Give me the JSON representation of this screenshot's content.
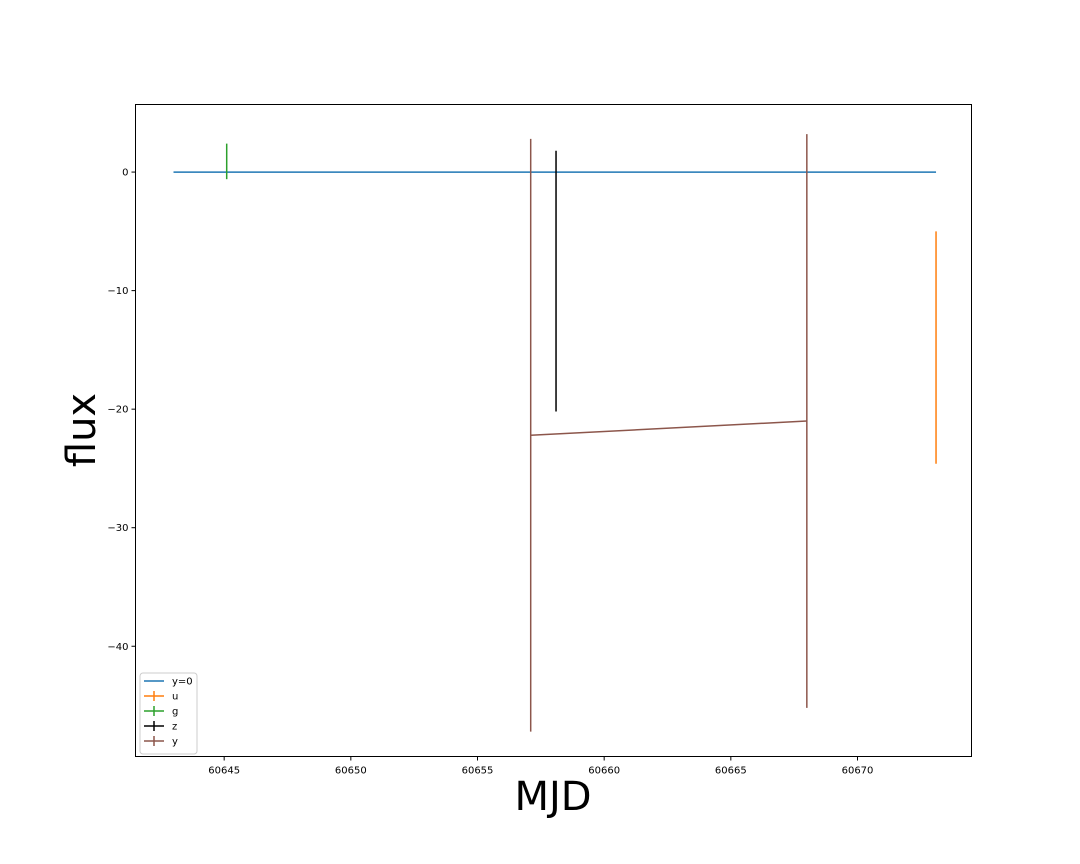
{
  "chart_data": {
    "type": "line",
    "title": "",
    "xlabel": "MJD",
    "ylabel": "flux",
    "xlim": [
      60641.5,
      60674.5
    ],
    "ylim": [
      -49.3,
      5.7
    ],
    "xticks": [
      60645,
      60650,
      60655,
      60660,
      60665,
      60670
    ],
    "yticks": [
      0,
      -10,
      -20,
      -30,
      -40
    ],
    "grid": false,
    "legend_placement": "lower-left",
    "series": [
      {
        "name": "y=0",
        "color": "#1f77b4",
        "kind": "line",
        "x": [
          60643.0,
          60673.1
        ],
        "y": [
          0,
          0
        ]
      },
      {
        "name": "u",
        "color": "#ff7f0e",
        "kind": "errorbar",
        "points": [
          {
            "x": 60673.1,
            "y": -14.8,
            "err": 9.8
          }
        ]
      },
      {
        "name": "g",
        "color": "#2ca02c",
        "kind": "errorbar",
        "points": [
          {
            "x": 60645.1,
            "y": 0.9,
            "err": 1.5
          }
        ]
      },
      {
        "name": "z",
        "color": "#000000",
        "kind": "errorbar",
        "points": [
          {
            "x": 60658.1,
            "y": -9.2,
            "err": 11.0
          }
        ]
      },
      {
        "name": "y",
        "color": "#8c564b",
        "kind": "errorbar",
        "points": [
          {
            "x": 60657.1,
            "y": -22.2,
            "err": 25.0
          },
          {
            "x": 60668.0,
            "y": -21.0,
            "err": 24.2
          }
        ]
      }
    ]
  }
}
